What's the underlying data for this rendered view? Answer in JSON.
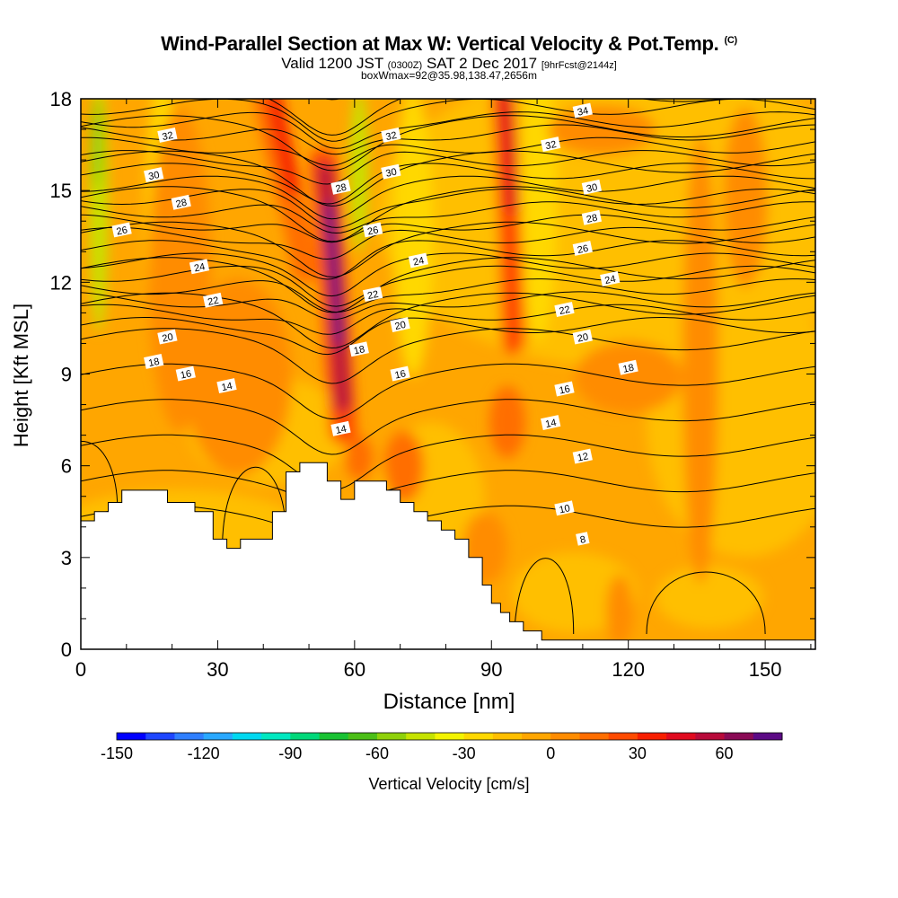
{
  "header": {
    "title": "Wind-Parallel Section at Max W: Vertical Velocity & Pot.Temp.",
    "copyright": "(C)",
    "valid_prefix": "Valid 1200 JST",
    "valid_utc": "(0300Z)",
    "valid_date": "SAT 2 Dec 2017",
    "forecast": "[9hrFcst@2144z]",
    "box_info": "boxWmax=92@35.98,138.47,2656m"
  },
  "chart_data": {
    "type": "heatmap",
    "title": "Wind-Parallel Section at Max W: Vertical Velocity & Pot.Temp.",
    "xlabel": "Distance [nm]",
    "ylabel": "Height [Kft MSL]",
    "xlim": [
      0,
      161
    ],
    "ylim": [
      0,
      18
    ],
    "xticks": [
      0,
      30,
      60,
      90,
      120,
      150
    ],
    "yticks": [
      0,
      3,
      6,
      9,
      12,
      15,
      18
    ],
    "terrain": [
      [
        0,
        4.2
      ],
      [
        3,
        4.2
      ],
      [
        3,
        4.5
      ],
      [
        6,
        4.5
      ],
      [
        6,
        4.8
      ],
      [
        9,
        4.8
      ],
      [
        9,
        5.2
      ],
      [
        19,
        5.2
      ],
      [
        19,
        4.8
      ],
      [
        25,
        4.8
      ],
      [
        25,
        4.5
      ],
      [
        29,
        4.5
      ],
      [
        29,
        3.6
      ],
      [
        32,
        3.6
      ],
      [
        32,
        3.3
      ],
      [
        35,
        3.3
      ],
      [
        35,
        3.6
      ],
      [
        42,
        3.6
      ],
      [
        42,
        4.5
      ],
      [
        45,
        4.5
      ],
      [
        45,
        5.8
      ],
      [
        48,
        5.8
      ],
      [
        48,
        6.1
      ],
      [
        54,
        6.1
      ],
      [
        54,
        5.5
      ],
      [
        57,
        5.5
      ],
      [
        57,
        4.9
      ],
      [
        60,
        4.9
      ],
      [
        60,
        5.5
      ],
      [
        67,
        5.5
      ],
      [
        67,
        5.2
      ],
      [
        70,
        5.2
      ],
      [
        70,
        4.8
      ],
      [
        73,
        4.8
      ],
      [
        73,
        4.5
      ],
      [
        76,
        4.5
      ],
      [
        76,
        4.2
      ],
      [
        79,
        4.2
      ],
      [
        79,
        3.9
      ],
      [
        82,
        3.9
      ],
      [
        82,
        3.6
      ],
      [
        85,
        3.6
      ],
      [
        85,
        3.0
      ],
      [
        88,
        3.0
      ],
      [
        88,
        2.1
      ],
      [
        90,
        2.1
      ],
      [
        90,
        1.5
      ],
      [
        92,
        1.5
      ],
      [
        92,
        1.2
      ],
      [
        94,
        1.2
      ],
      [
        94,
        0.9
      ],
      [
        97,
        0.9
      ],
      [
        97,
        0.6
      ],
      [
        101,
        0.6
      ],
      [
        101,
        0.3
      ],
      [
        104,
        0.3
      ],
      [
        104,
        0.3
      ],
      [
        161,
        0.3
      ]
    ],
    "theta_levels": [
      8,
      10,
      12,
      14,
      16,
      18,
      20,
      22,
      24,
      26,
      28,
      30,
      32,
      34
    ],
    "theta_labels": [
      {
        "text": "34",
        "x": 110,
        "y": 17.6
      },
      {
        "text": "32",
        "x": 19,
        "y": 16.8
      },
      {
        "text": "32",
        "x": 68,
        "y": 16.8
      },
      {
        "text": "32",
        "x": 103,
        "y": 16.5
      },
      {
        "text": "30",
        "x": 16,
        "y": 15.5
      },
      {
        "text": "30",
        "x": 68,
        "y": 15.6
      },
      {
        "text": "30",
        "x": 112,
        "y": 15.1
      },
      {
        "text": "28",
        "x": 22,
        "y": 14.6
      },
      {
        "text": "28",
        "x": 57,
        "y": 15.1
      },
      {
        "text": "28",
        "x": 112,
        "y": 14.1
      },
      {
        "text": "26",
        "x": 9,
        "y": 13.7
      },
      {
        "text": "26",
        "x": 64,
        "y": 13.7
      },
      {
        "text": "26",
        "x": 110,
        "y": 13.1
      },
      {
        "text": "24",
        "x": 26,
        "y": 12.5
      },
      {
        "text": "24",
        "x": 74,
        "y": 12.7
      },
      {
        "text": "24",
        "x": 116,
        "y": 12.1
      },
      {
        "text": "22",
        "x": 29,
        "y": 11.4
      },
      {
        "text": "22",
        "x": 64,
        "y": 11.6
      },
      {
        "text": "22",
        "x": 106,
        "y": 11.1
      },
      {
        "text": "20",
        "x": 19,
        "y": 10.2
      },
      {
        "text": "20",
        "x": 70,
        "y": 10.6
      },
      {
        "text": "20",
        "x": 110,
        "y": 10.2
      },
      {
        "text": "18",
        "x": 16,
        "y": 9.4
      },
      {
        "text": "18",
        "x": 61,
        "y": 9.8
      },
      {
        "text": "18",
        "x": 120,
        "y": 9.2
      },
      {
        "text": "16",
        "x": 23,
        "y": 9.0
      },
      {
        "text": "16",
        "x": 70,
        "y": 9.0
      },
      {
        "text": "16",
        "x": 106,
        "y": 8.5
      },
      {
        "text": "14",
        "x": 32,
        "y": 8.6
      },
      {
        "text": "14",
        "x": 57,
        "y": 7.2
      },
      {
        "text": "14",
        "x": 103,
        "y": 7.4
      },
      {
        "text": "12",
        "x": 110,
        "y": 6.3
      },
      {
        "text": "10",
        "x": 106,
        "y": 4.6
      },
      {
        "text": "8",
        "x": 110,
        "y": 3.6
      }
    ],
    "colorbar": {
      "label": "Vertical Velocity [cm/s]",
      "tick_labels": [
        "-150",
        "-120",
        "-90",
        "-60",
        "-30",
        "0",
        "30",
        "60"
      ],
      "tick_values": [
        -150,
        -120,
        -90,
        -60,
        -30,
        0,
        30,
        60
      ],
      "bins_start": -150,
      "bin_width": 10,
      "colors": [
        "#0000ff",
        "#1e46ff",
        "#2f7fff",
        "#29a8ff",
        "#00d8f0",
        "#00e8c0",
        "#00d87a",
        "#19c233",
        "#4cbf17",
        "#8fd10a",
        "#c6e300",
        "#f4f400",
        "#ffd800",
        "#ffbf00",
        "#ffa600",
        "#ff8c00",
        "#ff6e00",
        "#ff4b00",
        "#f71f00",
        "#e00a1f",
        "#b80a3a",
        "#8a0a55",
        "#5c0a85"
      ]
    }
  }
}
